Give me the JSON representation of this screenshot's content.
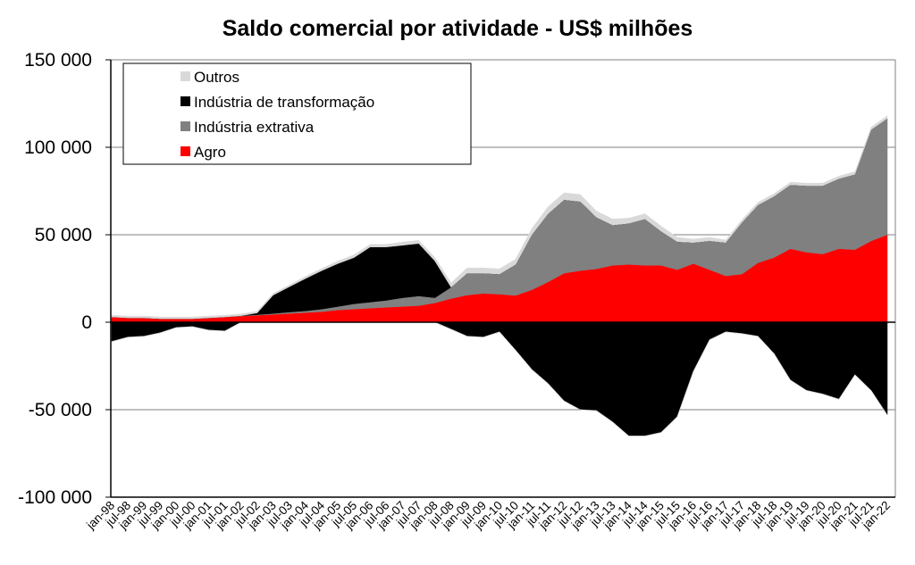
{
  "chart_data": {
    "type": "area",
    "stacked": true,
    "title": "Saldo comercial por atividade - US$ milhões",
    "xlabel": "",
    "ylabel": "",
    "ylim": [
      -100000,
      150000
    ],
    "yticks": [
      150000,
      100000,
      50000,
      0,
      -50000,
      -100000
    ],
    "ytick_labels": [
      "150 000",
      "100 000",
      "50 000",
      "0",
      "-50 000",
      "-100 000"
    ],
    "grid": true,
    "legend_position": "top-left",
    "categories": [
      "jan-98",
      "jul-98",
      "jan-99",
      "jul-99",
      "jan-00",
      "jul-00",
      "jan-01",
      "jul-01",
      "jan-02",
      "jul-02",
      "jan-03",
      "jul-03",
      "jan-04",
      "jul-04",
      "jan-05",
      "jul-05",
      "jan-06",
      "jul-06",
      "jan-07",
      "jul-07",
      "jan-08",
      "jul-08",
      "jan-09",
      "jul-09",
      "jan-10",
      "jul-10",
      "jan-11",
      "jul-11",
      "jan-12",
      "jul-12",
      "jan-13",
      "jul-13",
      "jan-14",
      "jul-14",
      "jan-15",
      "jul-15",
      "jan-16",
      "jul-16",
      "jan-17",
      "jul-17",
      "jan-18",
      "jul-18",
      "jan-19",
      "jul-19",
      "jan-20",
      "jul-20",
      "jan-21",
      "jul-21",
      "jan-22"
    ],
    "series": [
      {
        "name": "Agro",
        "color": "#ff0000",
        "values": [
          3000,
          2500,
          2500,
          2000,
          2000,
          2000,
          2500,
          3000,
          3500,
          4000,
          4500,
          5000,
          5500,
          6000,
          7000,
          7500,
          8000,
          8500,
          9000,
          9500,
          11000,
          13500,
          15500,
          16500,
          16000,
          15300,
          18500,
          23000,
          28000,
          29500,
          30500,
          32500,
          33000,
          32500,
          32500,
          30000,
          33500,
          30000,
          26500,
          27500,
          34000,
          37000,
          42000,
          40000,
          39000,
          42000,
          41500,
          46500,
          50000
        ]
      },
      {
        "name": "Indústria extrativa",
        "color": "#808080",
        "values": [
          0,
          0,
          0,
          0,
          0,
          0,
          0,
          0,
          200,
          300,
          500,
          800,
          1000,
          1500,
          2000,
          3000,
          3500,
          4000,
          5000,
          5500,
          3000,
          6500,
          12500,
          11500,
          11500,
          17700,
          31500,
          39000,
          42000,
          39500,
          29500,
          23000,
          23500,
          26500,
          19500,
          16000,
          12000,
          16500,
          19000,
          29500,
          33000,
          35000,
          36500,
          38000,
          39000,
          40000,
          43000,
          63500,
          66500
        ]
      },
      {
        "name": "Indústria de transformação",
        "color": "#000000",
        "values": [
          -11000,
          -8500,
          -8000,
          -6000,
          -3000,
          -2500,
          -4500,
          -5000,
          0,
          1000,
          10500,
          14500,
          18500,
          22000,
          24500,
          26500,
          31500,
          30500,
          30000,
          30000,
          21000,
          -4000,
          -8000,
          -8500,
          -5500,
          -16000,
          -27000,
          -35000,
          -45000,
          -50000,
          -50500,
          -57000,
          -65000,
          -65000,
          -63000,
          -54000,
          -28000,
          -10000,
          -5500,
          -6500,
          -8000,
          -18000,
          -33000,
          -39000,
          -41000,
          -44000,
          -30000,
          -39000,
          -53000
        ]
      },
      {
        "name": "Outros",
        "color": "#d9d9d9",
        "values": [
          1000,
          1000,
          1000,
          1000,
          1000,
          1000,
          1000,
          1000,
          1000,
          1000,
          1000,
          1000,
          1200,
          1200,
          1500,
          1500,
          1500,
          1500,
          1800,
          1800,
          2000,
          2500,
          3000,
          3000,
          3000,
          3000,
          3500,
          4000,
          4000,
          4000,
          3500,
          3500,
          3000,
          3000,
          3000,
          2500,
          2000,
          2000,
          1500,
          1500,
          1500,
          1500,
          1500,
          1500,
          1500,
          1500,
          1500,
          1500,
          1500
        ]
      }
    ],
    "legend_order": [
      "Outros",
      "Indústria de transformação",
      "Indústria extrativa",
      "Agro"
    ]
  }
}
